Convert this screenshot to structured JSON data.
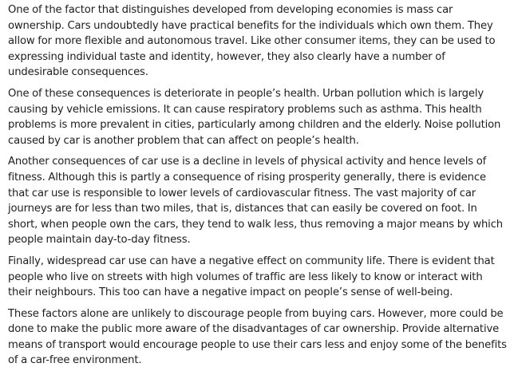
{
  "paragraphs": [
    "One of the factor that distinguishes developed from developing economies is mass car ownership. Cars undoubtedly have practical benefits for the individuals which own them. They allow for more flexible and autonomous travel. Like other consumer items, they can be used to expressing individual taste and identity, however, they also clearly have a number of undesirable consequences.",
    "One of these consequences is deteriorate in people’s health. Urban pollution which is largely causing by vehicle emissions. It can cause respiratory problems such as asthma. This health problems is more prevalent in cities, particularly among children and the elderly. Noise pollution caused by car is another problem that can affect on people’s health.",
    "Another consequences of car use is a decline in levels of physical activity and hence levels of fitness. Although this is partly a consequence of rising prosperity generally, there is evidence that car use is responsible to lower levels of cardiovascular fitness. The vast majority of car journeys are for less than two miles, that is, distances that can easily be covered on foot. In short, when people own the cars, they tend to walk less, thus removing a major means by which people maintain day-to-day fitness.",
    "Finally, widespread car use can have a negative effect on community life. There is evident that people who live on streets with high volumes of traffic are less likely to know or interact with their neighbours. This too can have a negative impact on people’s sense of well-being.",
    "These factors alone are unlikely to discourage people from buying cars. However, more could be done to make the public more aware of the disadvantages of car ownership. Provide alternative means of transport would encourage people to use their cars less and enjoy some of the benefits of a car-free environment."
  ]
}
